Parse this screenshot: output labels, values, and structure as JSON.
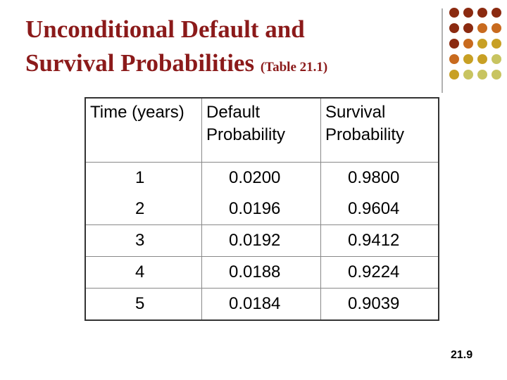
{
  "title": {
    "line1": "Unconditional Default and",
    "line2": "Survival Probabilities",
    "ref": "(Table 21.1)"
  },
  "table": {
    "header": [
      "Time (years)",
      "Default Probability",
      "Survival Probability"
    ],
    "rows": [
      [
        "1",
        "0.0200",
        "0.9800"
      ],
      [
        "2",
        "0.0196",
        "0.9604"
      ],
      [
        "3",
        "0.0192",
        "0.9412"
      ],
      [
        "4",
        "0.0188",
        "0.9224"
      ],
      [
        "5",
        "0.0184",
        "0.9039"
      ]
    ]
  },
  "page_number": "21.9"
}
